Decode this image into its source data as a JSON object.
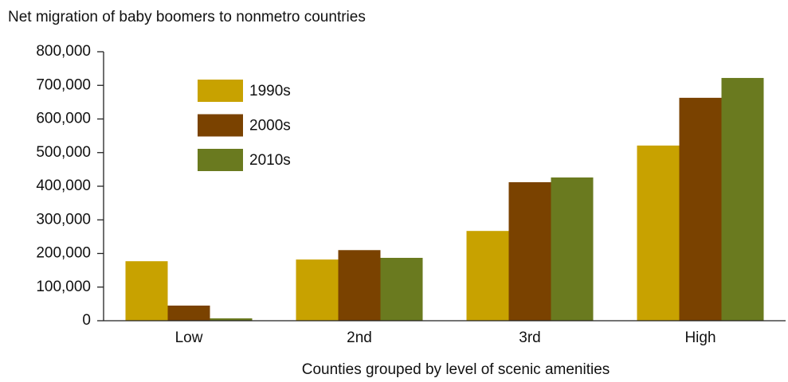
{
  "chart_data": {
    "type": "bar",
    "title": "Net migration of baby boomers to nonmetro countries",
    "x_label": "Counties grouped by level of scenic amenities",
    "categories": [
      "Low",
      "2nd",
      "3rd",
      "High"
    ],
    "series": [
      {
        "name": "1990s",
        "color": "#c8a200",
        "values": [
          177000,
          182000,
          267000,
          521000
        ]
      },
      {
        "name": "2000s",
        "color": "#7a4200",
        "values": [
          45000,
          210000,
          412000,
          663000
        ]
      },
      {
        "name": "2010s",
        "color": "#6a7a1f",
        "values": [
          7000,
          187000,
          426000,
          722000
        ]
      }
    ],
    "ylim": [
      0,
      800000
    ],
    "yticks": [
      0,
      {
        "value": 100000,
        "label": "100,000"
      },
      {
        "value": 200000,
        "label": "200,000"
      },
      {
        "value": 300000,
        "label": "300,000"
      },
      {
        "value": 400000,
        "label": "400,000"
      },
      {
        "value": 500000,
        "label": "500,000"
      },
      {
        "value": 600000,
        "label": "600,000"
      },
      {
        "value": 700000,
        "label": "700,000"
      },
      {
        "value": 800000,
        "label": "800,000"
      }
    ],
    "legend": "upper-left"
  }
}
